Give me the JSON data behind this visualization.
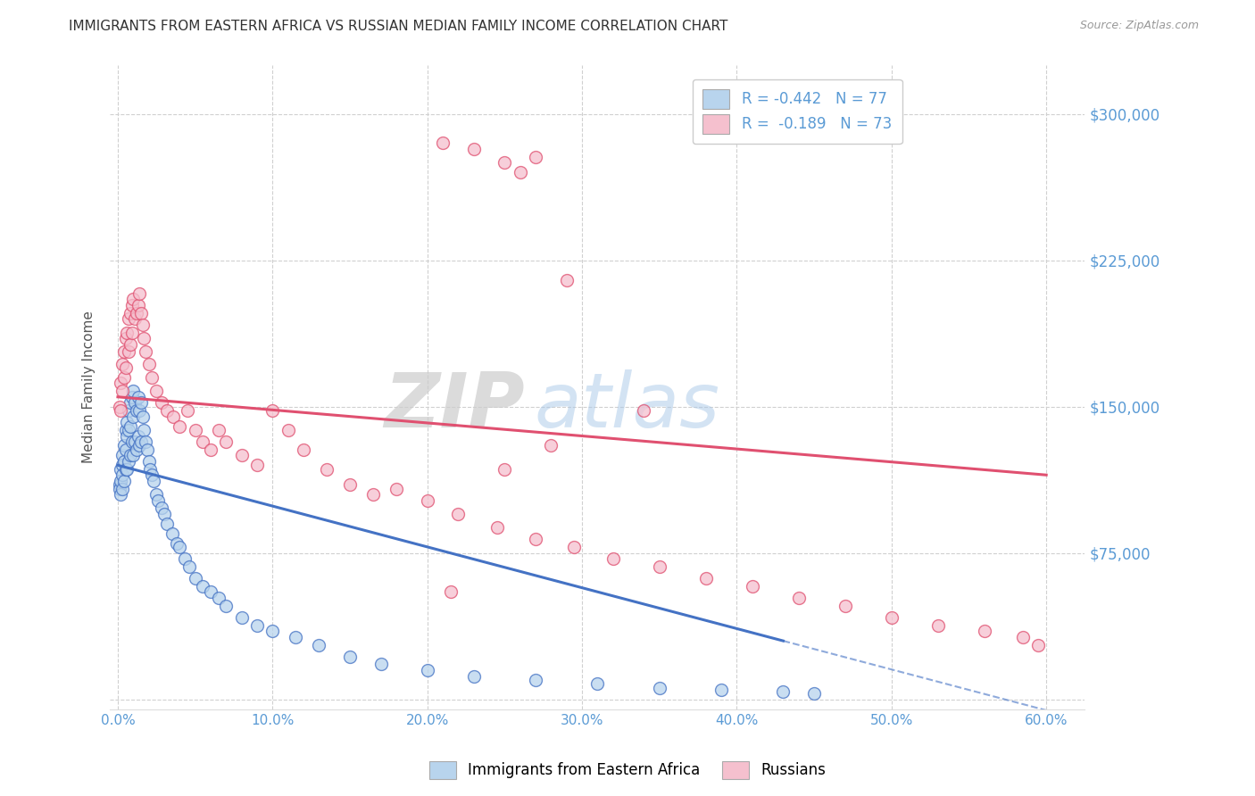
{
  "title": "IMMIGRANTS FROM EASTERN AFRICA VS RUSSIAN MEDIAN FAMILY INCOME CORRELATION CHART",
  "source": "Source: ZipAtlas.com",
  "ylabel": "Median Family Income",
  "x_ticks": [
    "0.0%",
    "10.0%",
    "20.0%",
    "30.0%",
    "40.0%",
    "50.0%",
    "60.0%"
  ],
  "x_tick_vals": [
    0.0,
    0.1,
    0.2,
    0.3,
    0.4,
    0.5,
    0.6
  ],
  "y_ticks": [
    0,
    75000,
    150000,
    225000,
    300000
  ],
  "y_tick_labels": [
    "",
    "$75,000",
    "$150,000",
    "$225,000",
    "$300,000"
  ],
  "xlim": [
    -0.005,
    0.625
  ],
  "ylim": [
    -5000,
    325000
  ],
  "legend1_label": "R = -0.442   N = 77",
  "legend2_label": "R =  -0.189   N = 73",
  "legend1_face": "#b8d4ed",
  "legend2_face": "#f5c0ce",
  "line1_color": "#4472c4",
  "line2_color": "#e05070",
  "watermark_zip": "ZIP",
  "watermark_atlas": "atlas",
  "title_fontsize": 11,
  "tick_color": "#5b9bd5",
  "grid_color": "#d0d0d0",
  "background_color": "#ffffff",
  "blue_scatter_x": [
    0.001,
    0.001,
    0.002,
    0.002,
    0.002,
    0.003,
    0.003,
    0.003,
    0.003,
    0.004,
    0.004,
    0.004,
    0.005,
    0.005,
    0.005,
    0.006,
    0.006,
    0.006,
    0.007,
    0.007,
    0.007,
    0.008,
    0.008,
    0.008,
    0.009,
    0.009,
    0.01,
    0.01,
    0.01,
    0.011,
    0.011,
    0.012,
    0.012,
    0.013,
    0.013,
    0.014,
    0.014,
    0.015,
    0.015,
    0.016,
    0.017,
    0.018,
    0.019,
    0.02,
    0.021,
    0.022,
    0.023,
    0.025,
    0.026,
    0.028,
    0.03,
    0.032,
    0.035,
    0.038,
    0.04,
    0.043,
    0.046,
    0.05,
    0.055,
    0.06,
    0.065,
    0.07,
    0.08,
    0.09,
    0.1,
    0.115,
    0.13,
    0.15,
    0.17,
    0.2,
    0.23,
    0.27,
    0.31,
    0.35,
    0.39,
    0.43,
    0.45
  ],
  "blue_scatter_y": [
    110000,
    108000,
    118000,
    112000,
    105000,
    125000,
    120000,
    115000,
    108000,
    130000,
    122000,
    112000,
    138000,
    128000,
    118000,
    142000,
    135000,
    118000,
    148000,
    138000,
    122000,
    152000,
    140000,
    125000,
    155000,
    132000,
    158000,
    145000,
    125000,
    152000,
    132000,
    148000,
    128000,
    155000,
    135000,
    148000,
    130000,
    152000,
    132000,
    145000,
    138000,
    132000,
    128000,
    122000,
    118000,
    115000,
    112000,
    105000,
    102000,
    98000,
    95000,
    90000,
    85000,
    80000,
    78000,
    72000,
    68000,
    62000,
    58000,
    55000,
    52000,
    48000,
    42000,
    38000,
    35000,
    32000,
    28000,
    22000,
    18000,
    15000,
    12000,
    10000,
    8000,
    6000,
    5000,
    4000,
    3000
  ],
  "pink_scatter_x": [
    0.001,
    0.002,
    0.002,
    0.003,
    0.003,
    0.004,
    0.004,
    0.005,
    0.005,
    0.006,
    0.007,
    0.007,
    0.008,
    0.008,
    0.009,
    0.009,
    0.01,
    0.011,
    0.012,
    0.013,
    0.014,
    0.015,
    0.016,
    0.017,
    0.018,
    0.02,
    0.022,
    0.025,
    0.028,
    0.032,
    0.036,
    0.04,
    0.045,
    0.05,
    0.055,
    0.06,
    0.065,
    0.07,
    0.08,
    0.09,
    0.1,
    0.11,
    0.12,
    0.135,
    0.15,
    0.165,
    0.18,
    0.2,
    0.22,
    0.245,
    0.27,
    0.295,
    0.32,
    0.35,
    0.38,
    0.41,
    0.44,
    0.47,
    0.5,
    0.53,
    0.56,
    0.585,
    0.595,
    0.21,
    0.23,
    0.25,
    0.27,
    0.29,
    0.26,
    0.34,
    0.28,
    0.25,
    0.215
  ],
  "pink_scatter_y": [
    150000,
    162000,
    148000,
    172000,
    158000,
    178000,
    165000,
    185000,
    170000,
    188000,
    195000,
    178000,
    198000,
    182000,
    202000,
    188000,
    205000,
    195000,
    198000,
    202000,
    208000,
    198000,
    192000,
    185000,
    178000,
    172000,
    165000,
    158000,
    152000,
    148000,
    145000,
    140000,
    148000,
    138000,
    132000,
    128000,
    138000,
    132000,
    125000,
    120000,
    148000,
    138000,
    128000,
    118000,
    110000,
    105000,
    108000,
    102000,
    95000,
    88000,
    82000,
    78000,
    72000,
    68000,
    62000,
    58000,
    52000,
    48000,
    42000,
    38000,
    35000,
    32000,
    28000,
    285000,
    282000,
    275000,
    278000,
    215000,
    270000,
    148000,
    130000,
    118000,
    55000
  ]
}
